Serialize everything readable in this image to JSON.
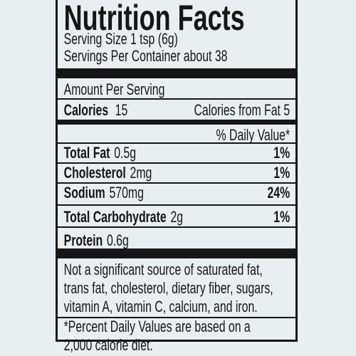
{
  "title": "Nutrition Facts",
  "serving": {
    "size": "Serving Size 1 tsp (6g)",
    "per_container": "Servings Per Container about 38"
  },
  "amount_per_serving": "Amount Per Serving",
  "calories": {
    "label": "Calories",
    "value": "15",
    "from_fat": "Calories from Fat 5"
  },
  "daily_value_header": "% Daily Value*",
  "nutrients": [
    {
      "name": "Total Fat",
      "amount": "0.5g",
      "dv": "1%"
    },
    {
      "name": "Cholesterol",
      "amount": "2mg",
      "dv": "1%"
    },
    {
      "name": "Sodium",
      "amount": "570mg",
      "dv": "24%"
    },
    {
      "name": "Total Carbohydrate",
      "amount": "2g",
      "dv": "1%"
    },
    {
      "name": "Protein",
      "amount": "0.6g"
    }
  ],
  "note": [
    "Not a significant source of saturated fat,",
    "trans fat, cholesterol, dietary fiber, sugars,",
    "vitamin A, vitamin C, calcium, and iron."
  ],
  "footnote": [
    "*Percent Daily Values are based on a",
    "2,000 calorie diet."
  ]
}
